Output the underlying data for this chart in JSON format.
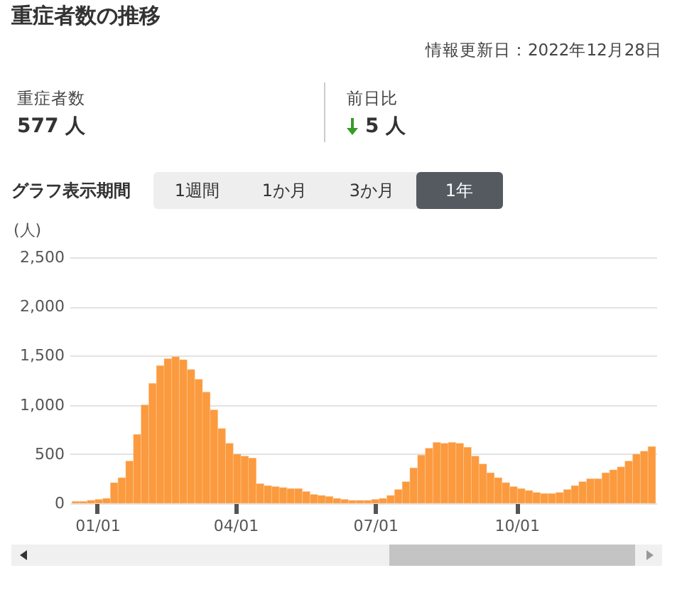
{
  "chart_data": {
    "type": "bar",
    "title": "重症者数の推移",
    "subtitle": "情報更新日：2022年12月28日",
    "ylabel": "(人)",
    "annotations": [
      "重症者数",
      "577 人",
      "前日比",
      "5 人",
      "グラフ表示期間",
      "1週間",
      "1か月",
      "3か月",
      "1年"
    ],
    "x": [
      "2021-12-18",
      "2021-12-23",
      "2021-12-28",
      "2022-01-02",
      "2022-01-07",
      "2022-01-12",
      "2022-01-17",
      "2022-01-22",
      "2022-01-27",
      "2022-02-01",
      "2022-02-06",
      "2022-02-11",
      "2022-02-16",
      "2022-02-21",
      "2022-02-26",
      "2022-03-03",
      "2022-03-08",
      "2022-03-13",
      "2022-03-18",
      "2022-03-23",
      "2022-03-28",
      "2022-04-02",
      "2022-04-07",
      "2022-04-12",
      "2022-04-17",
      "2022-04-22",
      "2022-04-27",
      "2022-05-02",
      "2022-05-07",
      "2022-05-12",
      "2022-05-17",
      "2022-05-22",
      "2022-05-27",
      "2022-06-01",
      "2022-06-06",
      "2022-06-11",
      "2022-06-16",
      "2022-06-21",
      "2022-06-26",
      "2022-07-01",
      "2022-07-06",
      "2022-07-11",
      "2022-07-16",
      "2022-07-21",
      "2022-07-26",
      "2022-07-31",
      "2022-08-05",
      "2022-08-10",
      "2022-08-15",
      "2022-08-20",
      "2022-08-25",
      "2022-08-30",
      "2022-09-04",
      "2022-09-09",
      "2022-09-14",
      "2022-09-19",
      "2022-09-24",
      "2022-09-29",
      "2022-10-04",
      "2022-10-09",
      "2022-10-14",
      "2022-10-19",
      "2022-10-24",
      "2022-10-29",
      "2022-11-03",
      "2022-11-08",
      "2022-11-13",
      "2022-11-18",
      "2022-11-23",
      "2022-11-28",
      "2022-12-03",
      "2022-12-08",
      "2022-12-13",
      "2022-12-18",
      "2022-12-23",
      "2022-12-28"
    ],
    "series": [
      {
        "color": "#fb9a3e",
        "values": [
          20,
          20,
          30,
          40,
          50,
          210,
          260,
          430,
          700,
          1000,
          1220,
          1400,
          1470,
          1490,
          1460,
          1360,
          1260,
          1130,
          950,
          760,
          610,
          500,
          480,
          460,
          200,
          180,
          170,
          160,
          150,
          150,
          120,
          90,
          80,
          70,
          50,
          40,
          30,
          30,
          30,
          40,
          50,
          80,
          140,
          220,
          360,
          490,
          560,
          620,
          610,
          620,
          610,
          570,
          480,
          400,
          310,
          260,
          210,
          170,
          150,
          130,
          110,
          100,
          100,
          110,
          140,
          180,
          220,
          250,
          250,
          310,
          340,
          370,
          430,
          500,
          530,
          577
        ]
      }
    ],
    "xlim": [
      "2021-12-14",
      "2022-12-31"
    ],
    "xticks": [
      {
        "value": "2022-01-01",
        "label": "01/01"
      },
      {
        "value": "2022-04-01",
        "label": "04/01"
      },
      {
        "value": "2022-07-01",
        "label": "07/01"
      },
      {
        "value": "2022-10-01",
        "label": "10/01"
      }
    ],
    "ylim": [
      0,
      2500
    ],
    "yticks": [
      {
        "value": 0,
        "label": "0"
      },
      {
        "value": 500,
        "label": "500"
      },
      {
        "value": 1000,
        "label": "1,000"
      },
      {
        "value": 1500,
        "label": "1,500"
      },
      {
        "value": 2000,
        "label": "2,000"
      },
      {
        "value": 2500,
        "label": "2,500"
      }
    ],
    "grid": "y"
  }
}
